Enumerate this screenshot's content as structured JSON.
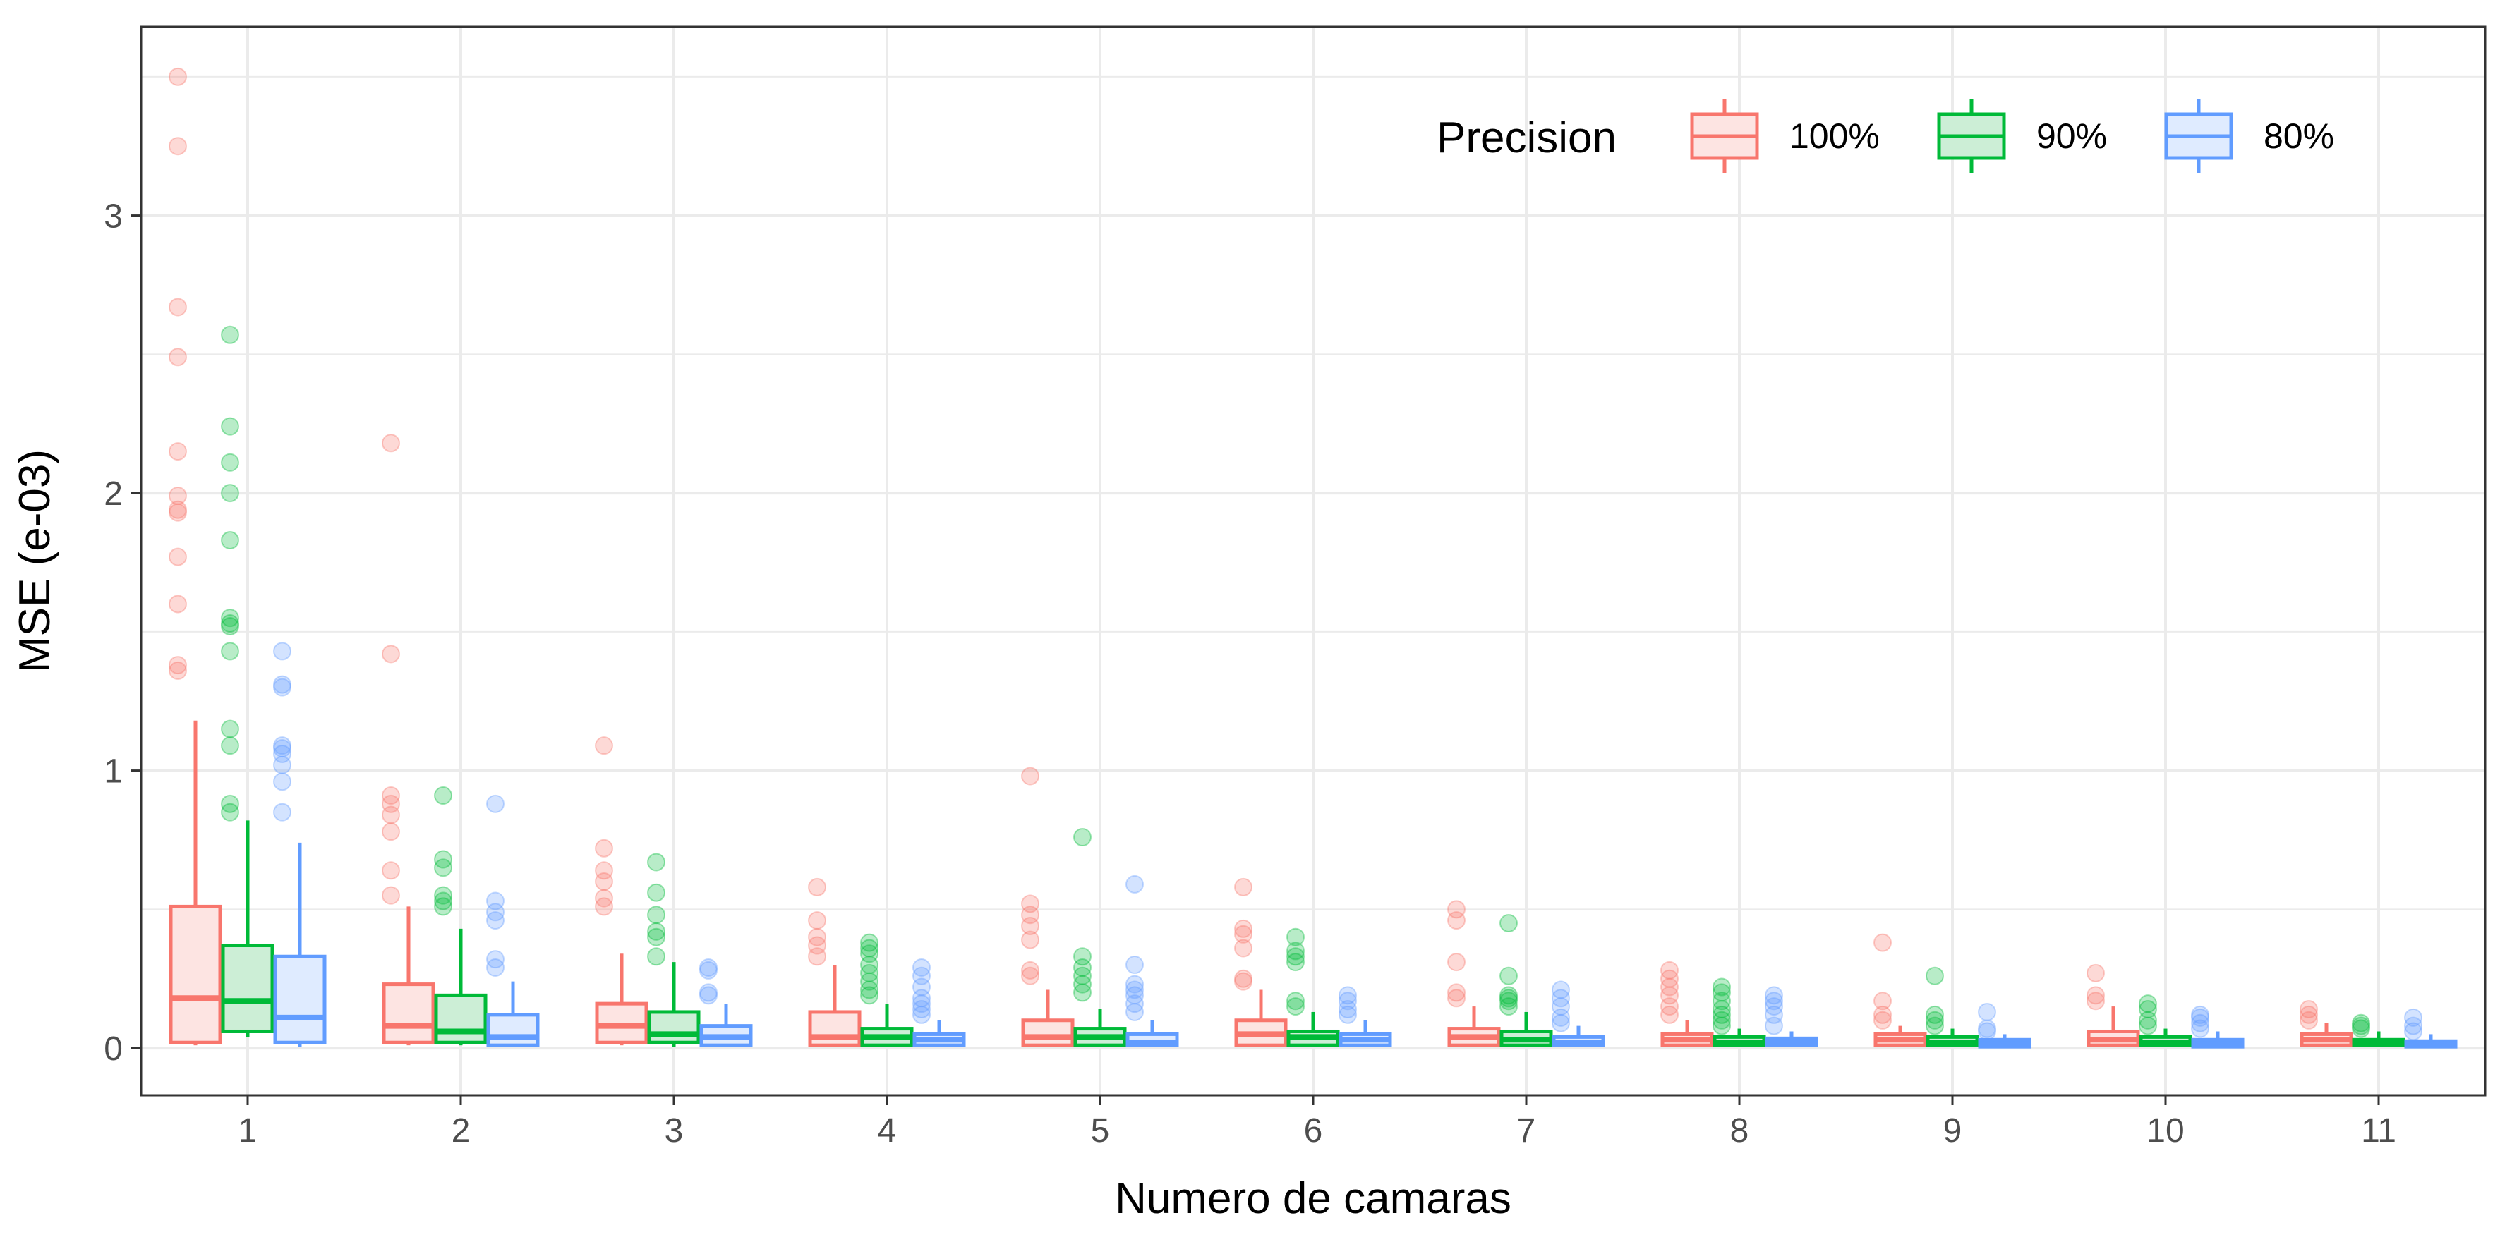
{
  "chart_data": {
    "type": "boxplot",
    "xlabel": "Numero de camaras",
    "ylabel": "MSE (e-03)",
    "ylim": [
      -0.17,
      3.68
    ],
    "y_ticks": [
      0,
      1,
      2,
      3
    ],
    "categories": [
      "1",
      "2",
      "3",
      "4",
      "5",
      "6",
      "7",
      "8",
      "9",
      "10",
      "11"
    ],
    "grid": true,
    "legend": {
      "title": "Precision",
      "position": "top-right",
      "entries": [
        "100%",
        "90%",
        "80%"
      ]
    },
    "series": [
      {
        "name": "100%",
        "color": "#f8766d",
        "fill": "#fde4e2",
        "boxes": [
          {
            "min": 0.01,
            "q1": 0.02,
            "median": 0.18,
            "q3": 0.51,
            "max": 1.18,
            "outliers": [
              1.36,
              1.38,
              1.6,
              1.77,
              1.93,
              1.94,
              1.99,
              2.15,
              2.49,
              2.67,
              3.25,
              3.5
            ]
          },
          {
            "min": 0.01,
            "q1": 0.02,
            "median": 0.08,
            "q3": 0.23,
            "max": 0.51,
            "outliers": [
              0.55,
              0.64,
              0.78,
              0.84,
              0.88,
              0.91,
              1.42,
              2.18
            ]
          },
          {
            "min": 0.01,
            "q1": 0.02,
            "median": 0.08,
            "q3": 0.16,
            "max": 0.34,
            "outliers": [
              0.51,
              0.54,
              0.6,
              0.64,
              0.72,
              1.09
            ]
          },
          {
            "min": 0.005,
            "q1": 0.01,
            "median": 0.04,
            "q3": 0.13,
            "max": 0.3,
            "outliers": [
              0.33,
              0.37,
              0.4,
              0.46,
              0.58
            ]
          },
          {
            "min": 0.005,
            "q1": 0.01,
            "median": 0.04,
            "q3": 0.1,
            "max": 0.21,
            "outliers": [
              0.26,
              0.28,
              0.39,
              0.44,
              0.48,
              0.52,
              0.98
            ]
          },
          {
            "min": 0.005,
            "q1": 0.01,
            "median": 0.05,
            "q3": 0.1,
            "max": 0.21,
            "outliers": [
              0.24,
              0.25,
              0.36,
              0.41,
              0.43,
              0.58
            ]
          },
          {
            "min": 0.005,
            "q1": 0.01,
            "median": 0.04,
            "q3": 0.07,
            "max": 0.15,
            "outliers": [
              0.18,
              0.2,
              0.31,
              0.46,
              0.5
            ]
          },
          {
            "min": 0.005,
            "q1": 0.01,
            "median": 0.03,
            "q3": 0.05,
            "max": 0.1,
            "outliers": [
              0.12,
              0.15,
              0.19,
              0.22,
              0.25,
              0.28
            ]
          },
          {
            "min": 0.005,
            "q1": 0.01,
            "median": 0.03,
            "q3": 0.05,
            "max": 0.08,
            "outliers": [
              0.1,
              0.12,
              0.17,
              0.38
            ]
          },
          {
            "min": 0.005,
            "q1": 0.01,
            "median": 0.03,
            "q3": 0.06,
            "max": 0.15,
            "outliers": [
              0.17,
              0.19,
              0.27
            ]
          },
          {
            "min": 0.005,
            "q1": 0.01,
            "median": 0.03,
            "q3": 0.05,
            "max": 0.09,
            "outliers": [
              0.1,
              0.12,
              0.14
            ]
          }
        ]
      },
      {
        "name": "90%",
        "color": "#00ba38",
        "fill": "#cceed6",
        "boxes": [
          {
            "min": 0.04,
            "q1": 0.06,
            "median": 0.17,
            "q3": 0.37,
            "max": 0.82,
            "outliers": [
              0.85,
              0.88,
              1.09,
              1.15,
              1.43,
              1.52,
              1.53,
              1.55,
              1.83,
              2.0,
              2.11,
              2.24,
              2.57
            ]
          },
          {
            "min": 0.01,
            "q1": 0.02,
            "median": 0.06,
            "q3": 0.19,
            "max": 0.43,
            "outliers": [
              0.51,
              0.53,
              0.55,
              0.65,
              0.68,
              0.91
            ]
          },
          {
            "min": 0.005,
            "q1": 0.02,
            "median": 0.05,
            "q3": 0.13,
            "max": 0.31,
            "outliers": [
              0.33,
              0.4,
              0.42,
              0.48,
              0.56,
              0.67
            ]
          },
          {
            "min": 0.005,
            "q1": 0.01,
            "median": 0.04,
            "q3": 0.07,
            "max": 0.16,
            "outliers": [
              0.19,
              0.21,
              0.24,
              0.27,
              0.3,
              0.34,
              0.36,
              0.38
            ]
          },
          {
            "min": 0.005,
            "q1": 0.01,
            "median": 0.04,
            "q3": 0.07,
            "max": 0.14,
            "outliers": [
              0.2,
              0.23,
              0.26,
              0.29,
              0.33,
              0.76
            ]
          },
          {
            "min": 0.005,
            "q1": 0.01,
            "median": 0.04,
            "q3": 0.06,
            "max": 0.13,
            "outliers": [
              0.15,
              0.17,
              0.31,
              0.33,
              0.35,
              0.4
            ]
          },
          {
            "min": 0.005,
            "q1": 0.01,
            "median": 0.03,
            "q3": 0.06,
            "max": 0.13,
            "outliers": [
              0.15,
              0.17,
              0.18,
              0.19,
              0.26,
              0.45
            ]
          },
          {
            "min": 0.005,
            "q1": 0.01,
            "median": 0.02,
            "q3": 0.04,
            "max": 0.07,
            "outliers": [
              0.08,
              0.1,
              0.12,
              0.14,
              0.17,
              0.2,
              0.22
            ]
          },
          {
            "min": 0.005,
            "q1": 0.01,
            "median": 0.02,
            "q3": 0.04,
            "max": 0.07,
            "outliers": [
              0.08,
              0.1,
              0.12,
              0.26
            ]
          },
          {
            "min": 0.005,
            "q1": 0.01,
            "median": 0.02,
            "q3": 0.04,
            "max": 0.07,
            "outliers": [
              0.08,
              0.1,
              0.14,
              0.16
            ]
          },
          {
            "min": 0.005,
            "q1": 0.01,
            "median": 0.02,
            "q3": 0.03,
            "max": 0.06,
            "outliers": [
              0.07,
              0.08,
              0.09
            ]
          }
        ]
      },
      {
        "name": "80%",
        "color": "#619cff",
        "fill": "#dfebff",
        "boxes": [
          {
            "min": 0.005,
            "q1": 0.02,
            "median": 0.11,
            "q3": 0.33,
            "max": 0.74,
            "outliers": [
              0.85,
              0.96,
              1.02,
              1.06,
              1.08,
              1.09,
              1.3,
              1.31,
              1.43
            ]
          },
          {
            "min": 0.005,
            "q1": 0.01,
            "median": 0.04,
            "q3": 0.12,
            "max": 0.24,
            "outliers": [
              0.29,
              0.32,
              0.46,
              0.49,
              0.53,
              0.88
            ]
          },
          {
            "min": 0.005,
            "q1": 0.01,
            "median": 0.04,
            "q3": 0.08,
            "max": 0.16,
            "outliers": [
              0.19,
              0.2,
              0.28,
              0.29
            ]
          },
          {
            "min": 0.005,
            "q1": 0.01,
            "median": 0.03,
            "q3": 0.05,
            "max": 0.1,
            "outliers": [
              0.12,
              0.14,
              0.16,
              0.18,
              0.22,
              0.26,
              0.29
            ]
          },
          {
            "min": 0.005,
            "q1": 0.01,
            "median": 0.02,
            "q3": 0.05,
            "max": 0.1,
            "outliers": [
              0.13,
              0.16,
              0.19,
              0.21,
              0.23,
              0.3,
              0.59
            ]
          },
          {
            "min": 0.005,
            "q1": 0.01,
            "median": 0.03,
            "q3": 0.05,
            "max": 0.1,
            "outliers": [
              0.12,
              0.14,
              0.17,
              0.19
            ]
          },
          {
            "min": 0.005,
            "q1": 0.01,
            "median": 0.02,
            "q3": 0.04,
            "max": 0.08,
            "outliers": [
              0.09,
              0.11,
              0.15,
              0.18,
              0.21
            ]
          },
          {
            "min": 0.005,
            "q1": 0.01,
            "median": 0.02,
            "q3": 0.035,
            "max": 0.06,
            "outliers": [
              0.08,
              0.12,
              0.15,
              0.17,
              0.19
            ]
          },
          {
            "min": 0.005,
            "q1": 0.005,
            "median": 0.015,
            "q3": 0.03,
            "max": 0.05,
            "outliers": [
              0.06,
              0.07,
              0.13
            ]
          },
          {
            "min": 0.005,
            "q1": 0.005,
            "median": 0.015,
            "q3": 0.03,
            "max": 0.06,
            "outliers": [
              0.07,
              0.09,
              0.11,
              0.12
            ]
          },
          {
            "min": 0.005,
            "q1": 0.005,
            "median": 0.015,
            "q3": 0.025,
            "max": 0.05,
            "outliers": [
              0.06,
              0.08,
              0.11
            ]
          }
        ]
      }
    ]
  }
}
